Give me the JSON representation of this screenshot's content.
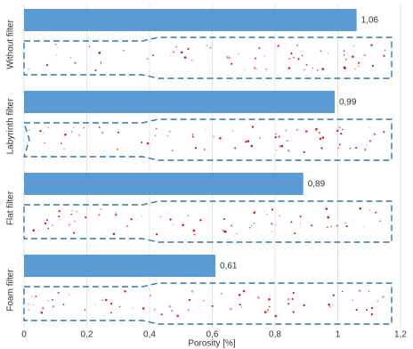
{
  "chart_data": {
    "type": "bar",
    "orientation": "horizontal",
    "x_label": "Porosity [%]",
    "categories": [
      "Without filter",
      "Labyrinth filter",
      "Flat filter",
      "Foam filter"
    ],
    "values": [
      1.06,
      0.99,
      0.89,
      0.61
    ],
    "value_labels": [
      "1,06",
      "0,99",
      "0,89",
      "0,61"
    ],
    "color": "#5b9bd5",
    "xlim": [
      0,
      1.2
    ],
    "xticks": [
      0,
      {
        "value": 0.2,
        "label": "0,2"
      },
      {
        "value": 0.4,
        "label": "0,4"
      },
      {
        "value": 0.6,
        "label": "0,6"
      },
      {
        "value": 0.8,
        "label": "0,8"
      },
      1,
      {
        "value": 1.2,
        "label": "1,2"
      }
    ],
    "grid": true
  }
}
